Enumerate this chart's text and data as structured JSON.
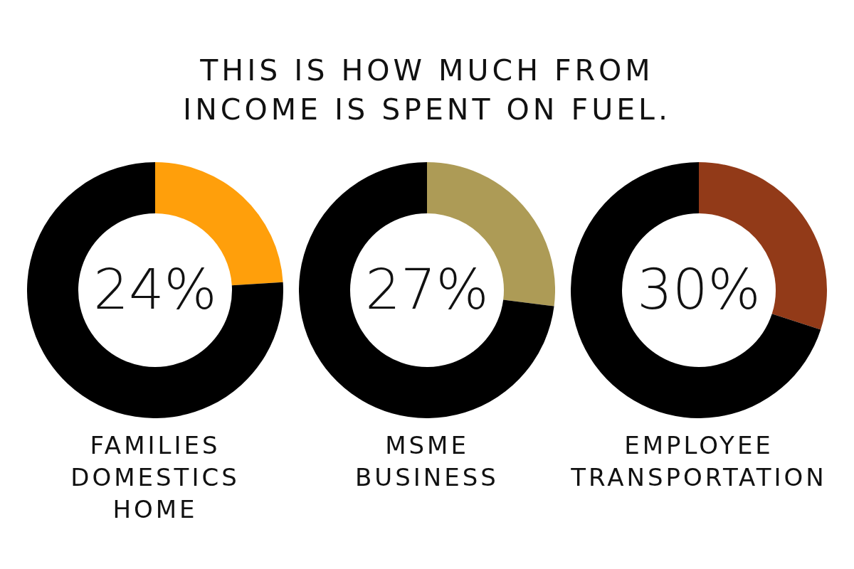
{
  "chart_data": [
    {
      "type": "other",
      "title": "THIS IS HOW MUCH FROM INCOME IS SPENT ON FUEL."
    },
    {
      "type": "donut",
      "title": "FAMILIES DOMESTICS HOME",
      "categories": [
        null,
        null
      ],
      "values": [
        24,
        76
      ],
      "colors": [
        "#ff9f0b",
        "#000000"
      ],
      "value_labels": [
        "24%",
        null
      ]
    },
    {
      "type": "donut",
      "title": "MSME BUSINESS",
      "categories": [
        null,
        null
      ],
      "values": [
        27,
        73
      ],
      "colors": [
        "#ad9b56",
        "#000000"
      ],
      "value_labels": [
        "27%",
        null
      ]
    },
    {
      "type": "donut",
      "title": "EMPLOYEE TRANSPORTATION",
      "categories": [
        null,
        null
      ],
      "values": [
        30,
        70
      ],
      "colors": [
        "#923a18",
        "#000000"
      ],
      "value_labels": [
        "30%",
        null
      ]
    }
  ]
}
